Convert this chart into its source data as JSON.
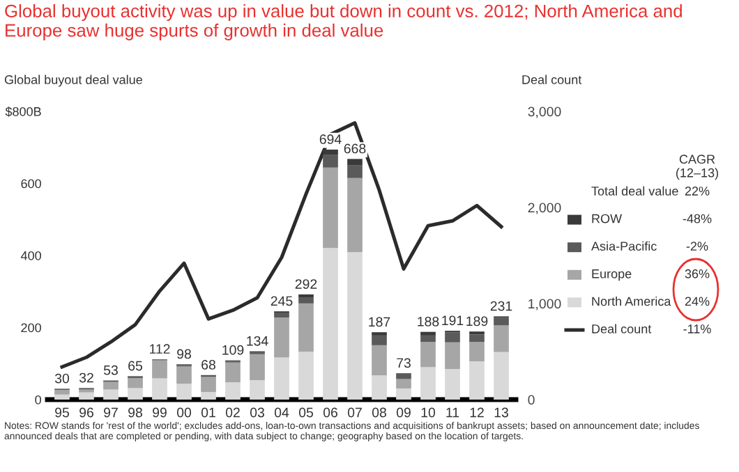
{
  "chart_data": {
    "type": "bar",
    "stacked": true,
    "title": "Global buyout activity was up in value but down in count vs. 2012; North America and Europe saw huge spurts of growth in deal value",
    "ylabel": "Global buyout deal value",
    "y2label": "Deal count",
    "categories": [
      "95",
      "96",
      "97",
      "98",
      "99",
      "00",
      "01",
      "02",
      "03",
      "04",
      "05",
      "06",
      "07",
      "08",
      "09",
      "10",
      "11",
      "12",
      "13"
    ],
    "series": [
      {
        "name": "North America",
        "color": "#d9d9d9",
        "values": [
          14,
          20,
          28,
          32,
          59,
          44,
          21,
          48,
          54,
          117,
          133,
          421,
          409,
          67,
          31,
          90,
          85,
          106,
          132
        ]
      },
      {
        "name": "Europe",
        "color": "#a6a6a6",
        "values": [
          13,
          8,
          21,
          28,
          50,
          48,
          42,
          55,
          72,
          111,
          134,
          223,
          206,
          84,
          26,
          70,
          74,
          54,
          74
        ]
      },
      {
        "name": "Asia-Pacific",
        "color": "#5a5a5a",
        "values": [
          2,
          3,
          3,
          4,
          2,
          4,
          3,
          4,
          5,
          12,
          17,
          36,
          36,
          27,
          13,
          18,
          28,
          21,
          21
        ]
      },
      {
        "name": "ROW",
        "color": "#3a3a3a",
        "values": [
          1,
          1,
          1,
          1,
          1,
          2,
          2,
          2,
          3,
          5,
          8,
          14,
          17,
          9,
          3,
          10,
          4,
          8,
          4
        ]
      },
      {
        "name": "Deal count",
        "type": "line",
        "axis": "y2",
        "color": "#2b2b2b",
        "values": [
          340,
          440,
          600,
          780,
          1130,
          1420,
          840,
          930,
          1060,
          1480,
          2140,
          2760,
          2880,
          2180,
          1360,
          1810,
          1860,
          2020,
          1800
        ]
      }
    ],
    "totals": [
      "30",
      "32",
      "53",
      "65",
      "112",
      "98",
      "68",
      "109",
      "134",
      "245",
      "292",
      "694",
      "668",
      "187",
      "73",
      "188",
      "191",
      "189",
      "231"
    ],
    "ylim": [
      0,
      800
    ],
    "yticks": [
      0,
      200,
      400,
      600,
      {
        "value": 800,
        "label": "$800B"
      }
    ],
    "y2lim": [
      0,
      3000
    ],
    "y2ticks": [
      0,
      {
        "value": 1000,
        "label": "1,000"
      },
      {
        "value": 2000,
        "label": "2,000"
      },
      {
        "value": 3000,
        "label": "3,000"
      }
    ],
    "legend": "right",
    "grid": false,
    "annotations": [
      "Notes: ROW stands for 'rest of the world'; excludes add-ons, loan-to-own transactions and acquisitions of bankrupt assets; based on announcement date; includes announced deals that are completed or pending, with data subject to change; geography based on the location of targets.",
      "CAGR\n(12–13)",
      "Total deal value",
      "22%",
      "-48%",
      "-2%",
      "36%",
      "24%",
      "-11%"
    ]
  }
}
